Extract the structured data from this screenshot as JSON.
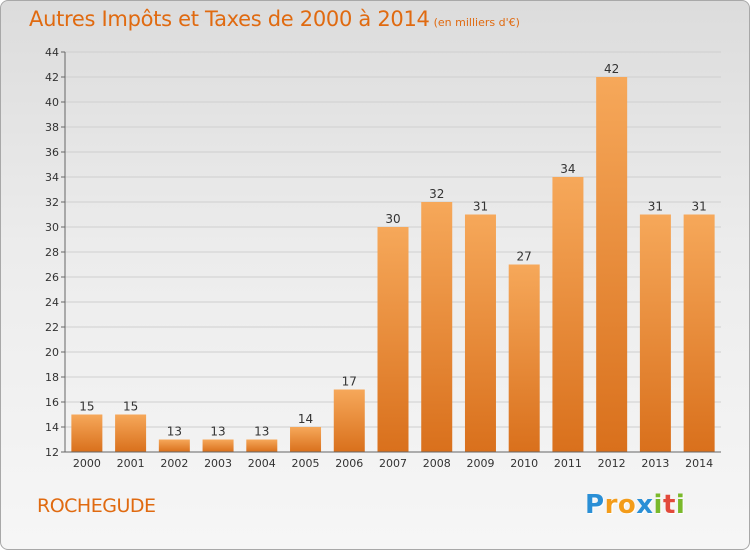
{
  "chart_data": {
    "type": "bar",
    "title": "Autres Impôts et Taxes de 2000 à 2014",
    "subtitle": "(en milliers d'€)",
    "categories": [
      "2000",
      "2001",
      "2002",
      "2003",
      "2004",
      "2005",
      "2006",
      "2007",
      "2008",
      "2009",
      "2010",
      "2011",
      "2012",
      "2013",
      "2014"
    ],
    "values": [
      15,
      15,
      13,
      13,
      13,
      14,
      17,
      30,
      32,
      31,
      27,
      34,
      42,
      31,
      31
    ],
    "ylim": [
      12,
      44
    ],
    "yticks": [
      12,
      14,
      16,
      18,
      20,
      22,
      24,
      26,
      28,
      30,
      32,
      34,
      36,
      38,
      40,
      42,
      44
    ],
    "grid": true,
    "bar_color": "#f0923a"
  },
  "location": "ROCHEGUDE",
  "logo": {
    "letters": [
      "P",
      "r",
      "o",
      "x",
      "i",
      "t",
      "i"
    ],
    "colors": [
      "#2a8fd6",
      "#f39c1a",
      "#f39c1a",
      "#2a8fd6",
      "#7ab92b",
      "#e24a3b",
      "#7ab92b"
    ]
  }
}
